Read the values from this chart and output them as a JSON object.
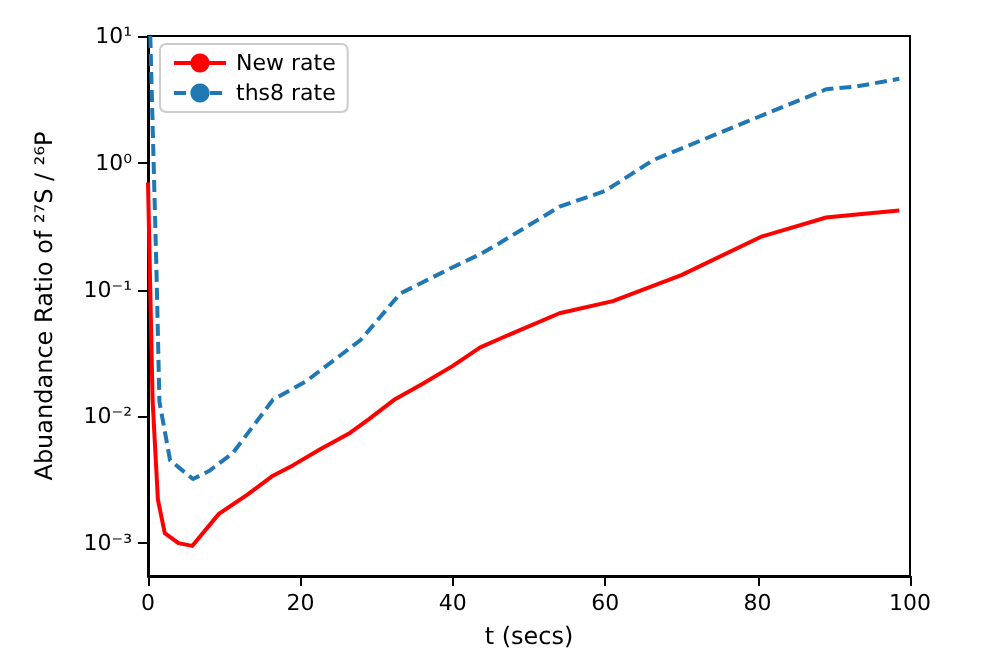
{
  "chart_data": {
    "type": "line",
    "xlabel": "t (secs)",
    "ylabel": "Abuandance Ratio of ²⁷S / ²⁶P",
    "log": "y",
    "grid": false,
    "legend": "top left",
    "marker": "none",
    "xlim": [
      0,
      100
    ],
    "xticks": [
      0,
      20,
      40,
      60,
      80,
      100
    ],
    "ylim": [
      0.00055,
      10
    ],
    "yticks": [
      {
        "value": 0.001,
        "label": "10⁻³"
      },
      {
        "value": 0.01,
        "label": "10⁻²"
      },
      {
        "value": 0.1,
        "label": "10⁻¹"
      },
      {
        "value": 1,
        "label": "10⁰"
      },
      {
        "value": 10,
        "label": "10¹"
      }
    ],
    "series": [
      {
        "name": "New rate",
        "color": "#ff0000",
        "line_style": "solid",
        "x": [
          0,
          0.6,
          1.3,
          2.2,
          4,
          5.8,
          9.3,
          13,
          16.4,
          19,
          22.6,
          26.5,
          29,
          32.3,
          36,
          40,
          43.6,
          47,
          54,
          61,
          70,
          80.4,
          89,
          93,
          98.6
        ],
        "values": [
          0.7,
          0.0135,
          0.0022,
          0.0012,
          0.001,
          0.00095,
          0.0017,
          0.0024,
          0.0034,
          0.0041,
          0.0055,
          0.0074,
          0.0095,
          0.0135,
          0.018,
          0.025,
          0.035,
          0.043,
          0.065,
          0.081,
          0.13,
          0.26,
          0.37,
          0.39,
          0.42
        ]
      },
      {
        "name": "ths8 rate",
        "color": "#1f77b4",
        "line_style": "dashed",
        "x": [
          0.3,
          1.1,
          1.5,
          2.9,
          5.9,
          8,
          11.1,
          16.4,
          20.8,
          27.9,
          33.1,
          40,
          43.6,
          46,
          54,
          60,
          66.3,
          78.5,
          89,
          93,
          98.6
        ],
        "values": [
          10,
          0.15,
          0.013,
          0.0045,
          0.0032,
          0.0037,
          0.0051,
          0.0135,
          0.019,
          0.04,
          0.093,
          0.15,
          0.19,
          0.23,
          0.45,
          0.6,
          1.05,
          2.1,
          3.8,
          4.0,
          4.6
        ]
      }
    ]
  }
}
